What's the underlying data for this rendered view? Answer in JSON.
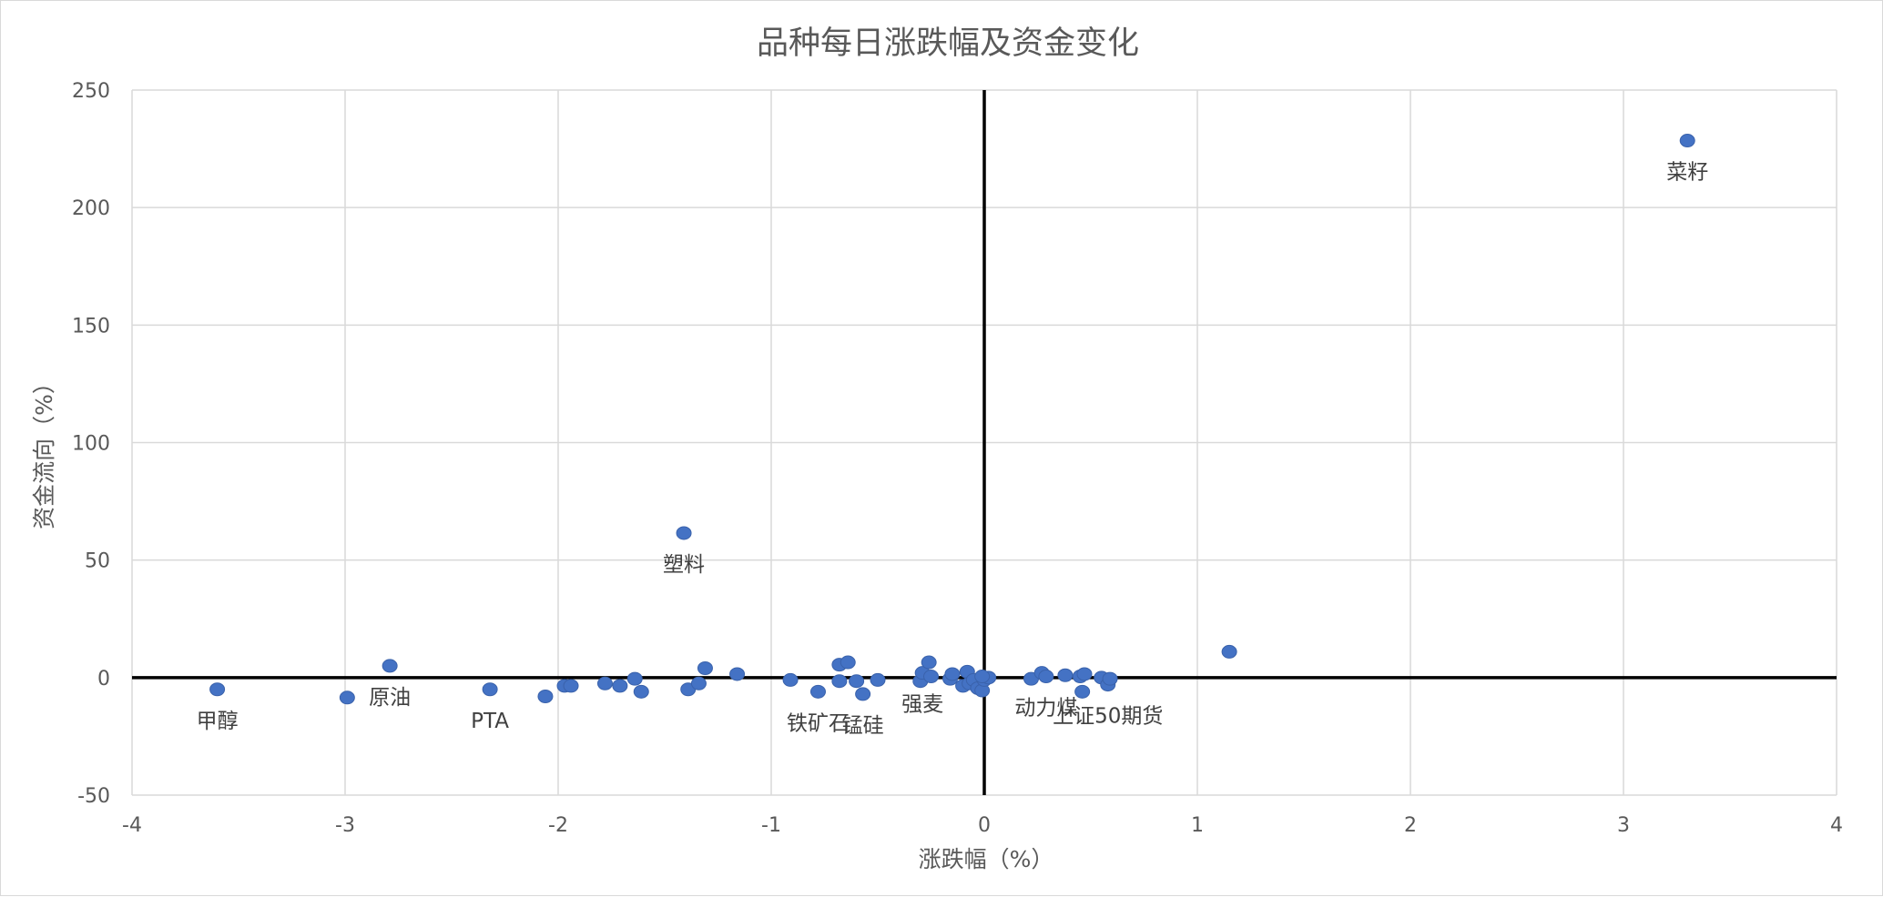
{
  "chart_data": {
    "type": "scatter",
    "title": "品种每日涨跌幅及资金变化",
    "xlabel": "涨跌幅（%）",
    "ylabel": "资金流向（%）",
    "xlim": [
      -4,
      4
    ],
    "ylim": [
      -50,
      250
    ],
    "x_ticks": [
      -4,
      -3,
      -2,
      -1,
      0,
      1,
      2,
      3,
      4
    ],
    "y_ticks": [
      -50,
      0,
      50,
      100,
      150,
      200,
      250
    ],
    "grid": true,
    "legend": "none",
    "point_color": "#4472C4",
    "axis_line_color": "#000000",
    "grid_color": "#d9d9d9",
    "points": [
      {
        "x": 3.3,
        "y": 228.5,
        "label": "菜籽"
      },
      {
        "x": -1.41,
        "y": 61.5,
        "label": "塑料"
      },
      {
        "x": -3.6,
        "y": -5,
        "label": "甲醇"
      },
      {
        "x": -2.99,
        "y": -8.5,
        "label": ""
      },
      {
        "x": -2.79,
        "y": 5,
        "label": "原油"
      },
      {
        "x": -2.32,
        "y": -5,
        "label": "PTA"
      },
      {
        "x": -2.06,
        "y": -8,
        "label": ""
      },
      {
        "x": -1.97,
        "y": -3.5,
        "label": ""
      },
      {
        "x": -1.94,
        "y": -3.5,
        "label": ""
      },
      {
        "x": -1.78,
        "y": -2.5,
        "label": ""
      },
      {
        "x": -1.71,
        "y": -3.5,
        "label": ""
      },
      {
        "x": -1.64,
        "y": -0.5,
        "label": ""
      },
      {
        "x": -1.61,
        "y": -6,
        "label": ""
      },
      {
        "x": -1.39,
        "y": -5,
        "label": ""
      },
      {
        "x": -1.34,
        "y": -2.5,
        "label": ""
      },
      {
        "x": -1.31,
        "y": 4,
        "label": ""
      },
      {
        "x": -1.16,
        "y": 1.5,
        "label": ""
      },
      {
        "x": -0.91,
        "y": -1,
        "label": ""
      },
      {
        "x": -0.78,
        "y": -6,
        "label": "铁矿石"
      },
      {
        "x": -0.68,
        "y": 5.5,
        "label": ""
      },
      {
        "x": -0.64,
        "y": 6.5,
        "label": ""
      },
      {
        "x": -0.68,
        "y": -1.5,
        "label": ""
      },
      {
        "x": -0.6,
        "y": -1.5,
        "label": ""
      },
      {
        "x": -0.57,
        "y": -7,
        "label": "锰硅"
      },
      {
        "x": -0.5,
        "y": -1,
        "label": ""
      },
      {
        "x": -0.3,
        "y": -1.5,
        "label": ""
      },
      {
        "x": -0.29,
        "y": 2,
        "label": "强麦"
      },
      {
        "x": -0.26,
        "y": 6.5,
        "label": ""
      },
      {
        "x": -0.25,
        "y": 0.5,
        "label": ""
      },
      {
        "x": -0.16,
        "y": -0.5,
        "label": ""
      },
      {
        "x": -0.15,
        "y": 1.5,
        "label": ""
      },
      {
        "x": -0.1,
        "y": -3.5,
        "label": ""
      },
      {
        "x": -0.08,
        "y": 2.5,
        "label": ""
      },
      {
        "x": -0.07,
        "y": -2.5,
        "label": ""
      },
      {
        "x": -0.05,
        "y": -1,
        "label": ""
      },
      {
        "x": -0.03,
        "y": -4.5,
        "label": ""
      },
      {
        "x": -0.01,
        "y": -5.5,
        "label": ""
      },
      {
        "x": 0.0,
        "y": -1,
        "label": ""
      },
      {
        "x": 0.02,
        "y": 0,
        "label": ""
      },
      {
        "x": -0.01,
        "y": 0.5,
        "label": ""
      },
      {
        "x": 0.22,
        "y": -0.5,
        "label": ""
      },
      {
        "x": 0.27,
        "y": 2,
        "label": ""
      },
      {
        "x": 0.29,
        "y": 0.5,
        "label": "动力煤"
      },
      {
        "x": 0.38,
        "y": 1,
        "label": ""
      },
      {
        "x": 0.45,
        "y": 0.5,
        "label": ""
      },
      {
        "x": 0.47,
        "y": 1.5,
        "label": ""
      },
      {
        "x": 0.46,
        "y": -6,
        "label": ""
      },
      {
        "x": 0.55,
        "y": 0,
        "label": ""
      },
      {
        "x": 0.58,
        "y": -3,
        "label": "上证50期货"
      },
      {
        "x": 0.59,
        "y": -0.5,
        "label": ""
      },
      {
        "x": 1.15,
        "y": 11,
        "label": ""
      }
    ]
  }
}
